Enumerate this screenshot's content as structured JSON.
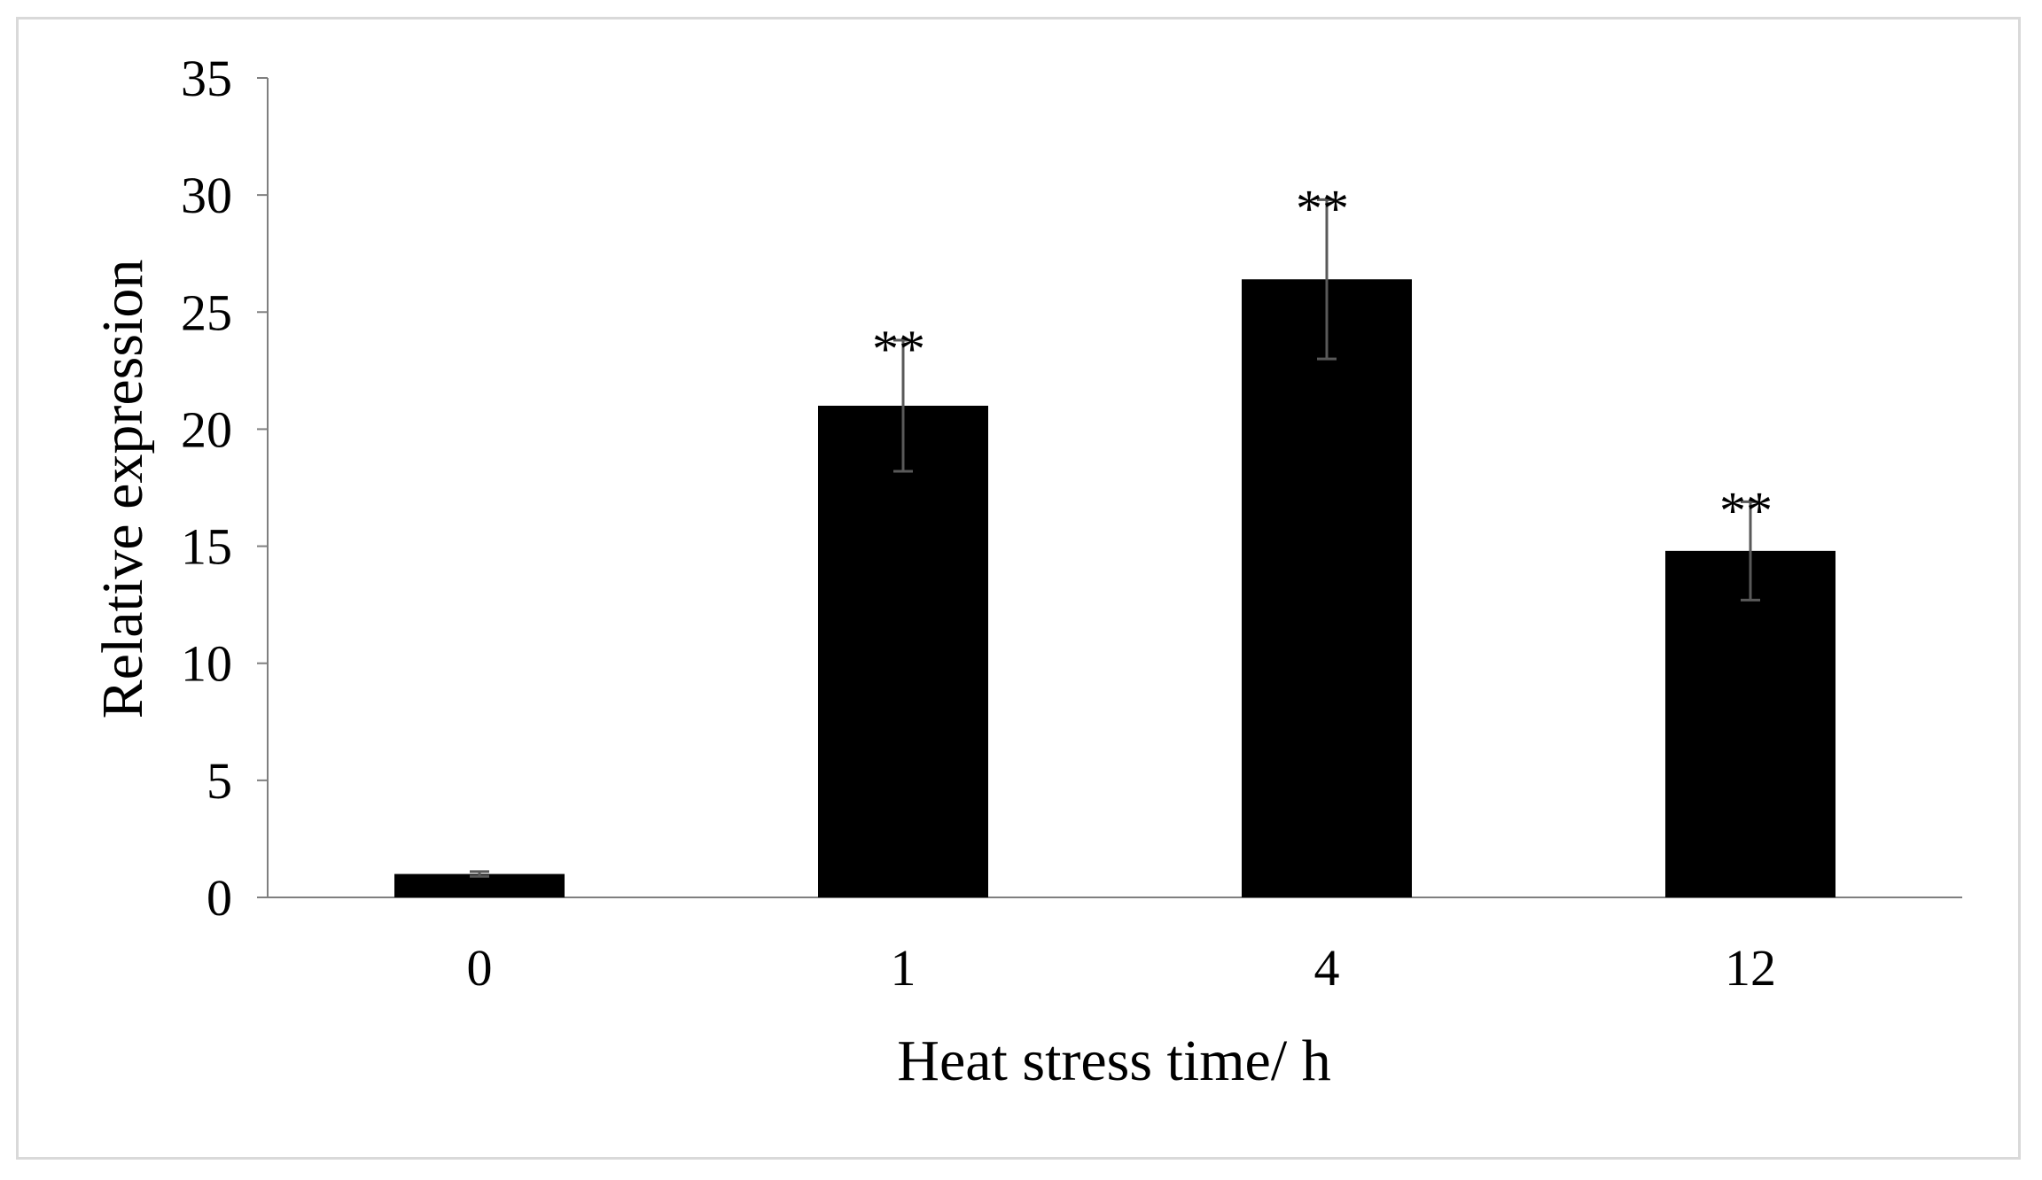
{
  "chart_data": {
    "type": "bar",
    "title": "",
    "xlabel": "Heat stress time/ h",
    "ylabel": "Relative expression",
    "categories": [
      "0",
      "1",
      "4",
      "12"
    ],
    "values": [
      1.0,
      21.0,
      26.4,
      14.8
    ],
    "error": [
      0.1,
      2.8,
      3.4,
      2.1
    ],
    "significance": [
      "",
      "**",
      "**",
      "**"
    ],
    "ylim": [
      0,
      35
    ],
    "yticks": [
      "0",
      "5",
      "10",
      "15",
      "20",
      "25",
      "30",
      "35"
    ],
    "grid": false,
    "legend": "none",
    "bar_color": "#000000",
    "error_color": "#595959",
    "axis_color": "#7f7f7f"
  }
}
